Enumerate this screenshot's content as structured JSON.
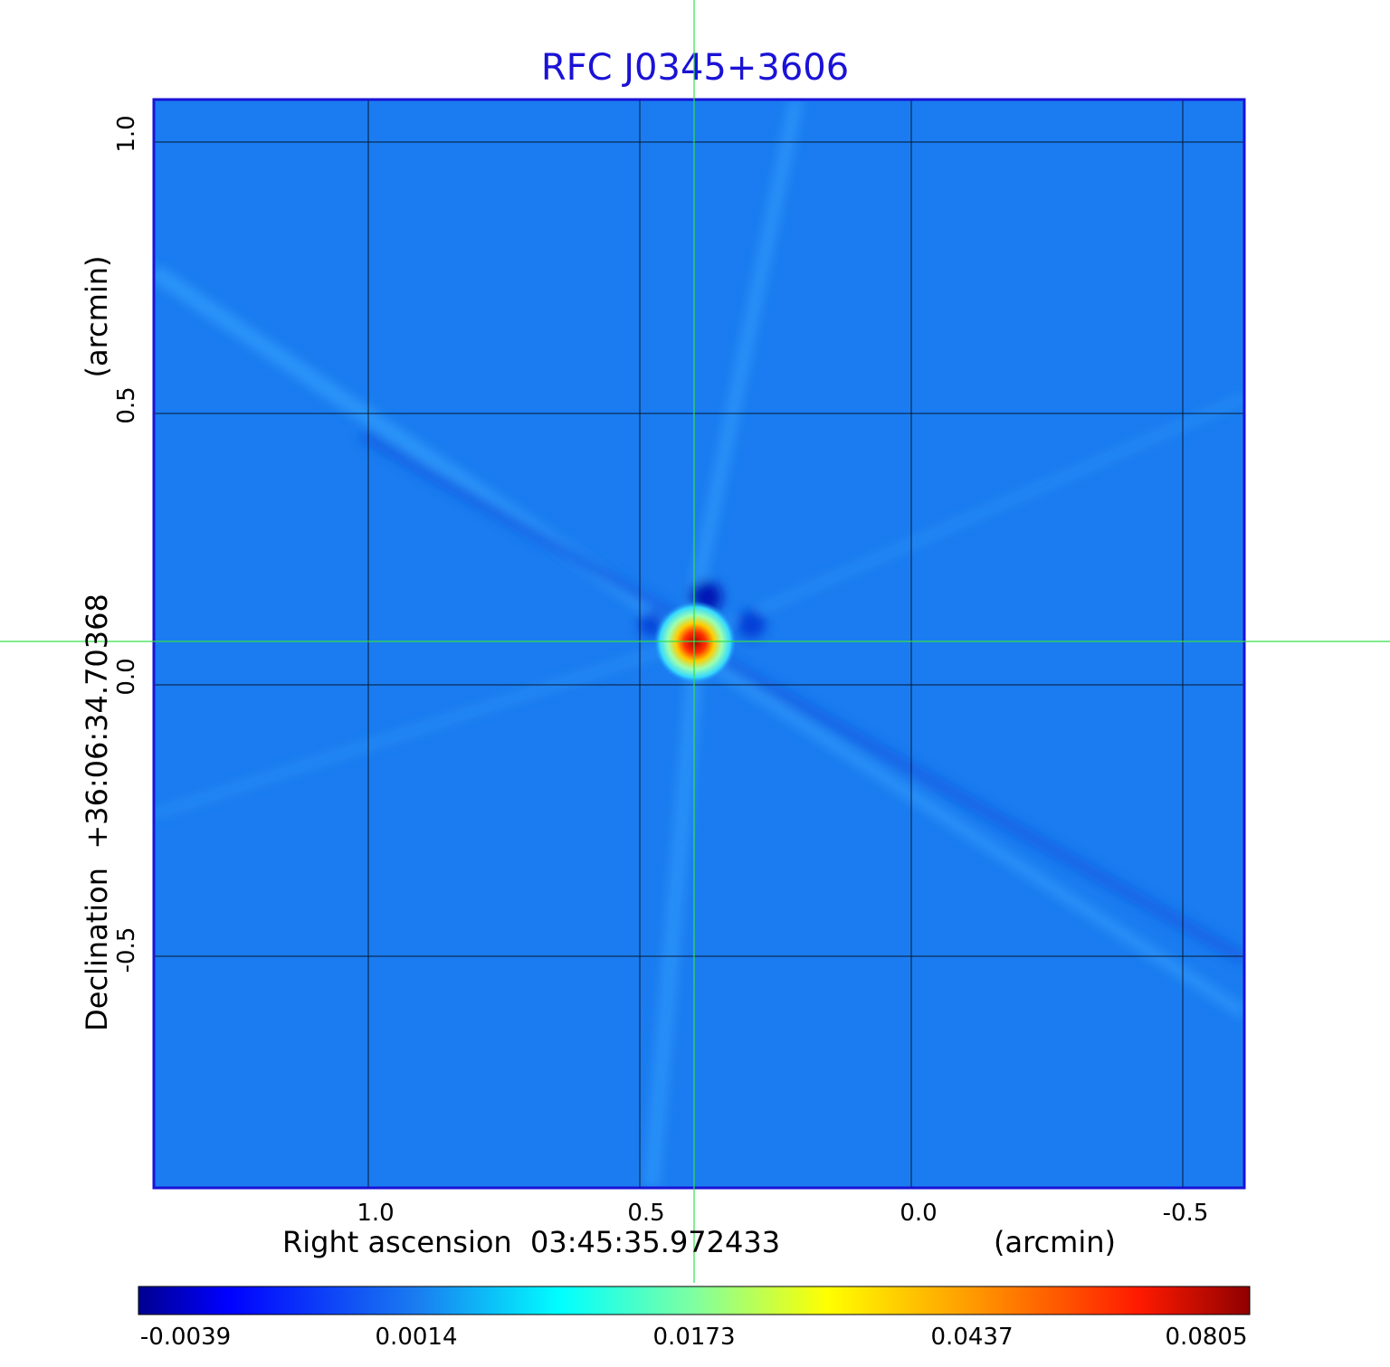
{
  "title": "RFC J0345+3606",
  "axes": {
    "x_label": "Right ascension  03:45:35.972433",
    "x_unit": "(arcmin)",
    "y_label": "Declination  +36:06:34.70368",
    "y_unit": "(arcmin)",
    "x_ticks": [
      "1.0",
      "0.5",
      "0.0",
      "-0.5"
    ],
    "y_ticks": [
      "1.0",
      "0.5",
      "0.0",
      "-0.5"
    ]
  },
  "colorbar": {
    "ticks": [
      "-0.0039",
      "0.0014",
      "0.0173",
      "0.0437",
      "0.0805"
    ]
  },
  "colors": {
    "title": "#1a12d6",
    "background_field": "#1a7cf0",
    "crosshair": "#33e04a",
    "frame": "#1a12d6"
  }
}
